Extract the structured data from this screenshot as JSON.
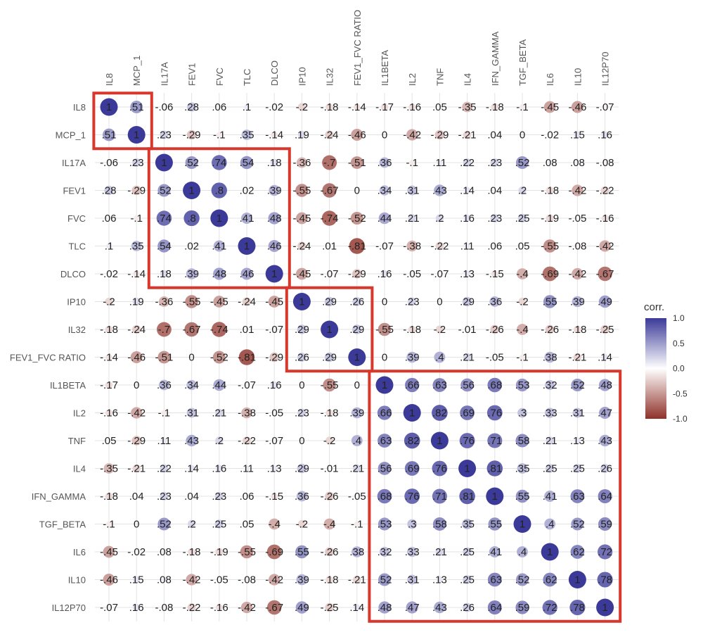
{
  "chart_data": {
    "type": "heatmap",
    "variables": [
      "IL8",
      "MCP_1",
      "IL17A",
      "FEV1",
      "FVC",
      "TLC",
      "DLCO",
      "IP10",
      "IL32",
      "FEV1_FVC RATIO",
      "IL1BETA",
      "IL2",
      "TNF",
      "IL4",
      "IFN_GAMMA",
      "TGF_BETA",
      "IL6",
      "IL10",
      "IL12P70"
    ],
    "matrix": [
      [
        "1",
        ".51",
        "-.06",
        ".28",
        ".06",
        ".1",
        "-.02",
        "-.2",
        "-.18",
        "-.14",
        "-.17",
        "-.16",
        ".05",
        "-.35",
        "-.18",
        "-.1",
        "-.45",
        "-.46",
        "-.07"
      ],
      [
        ".51",
        "1",
        ".23",
        "-.29",
        "-.1",
        ".35",
        "-.14",
        ".19",
        "-.24",
        "-.46",
        "0",
        "-.42",
        "-.29",
        "-.21",
        ".04",
        "0",
        "-.02",
        ".15",
        ".16"
      ],
      [
        "-.06",
        ".23",
        "1",
        ".52",
        ".74",
        ".54",
        ".18",
        "-.36",
        "-.7",
        "-.51",
        ".36",
        "-.1",
        ".11",
        ".22",
        ".23",
        ".52",
        ".08",
        ".08",
        "-.08"
      ],
      [
        ".28",
        "-.29",
        ".52",
        "1",
        ".8",
        ".02",
        ".39",
        "-.55",
        "-.67",
        "0",
        ".34",
        ".31",
        ".43",
        ".14",
        ".04",
        ".2",
        "-.18",
        "-.42",
        "-.22"
      ],
      [
        ".06",
        "-.1",
        ".74",
        ".8",
        "1",
        ".41",
        ".48",
        "-.45",
        "-.74",
        "-.52",
        ".44",
        ".21",
        ".2",
        ".16",
        ".23",
        ".25",
        "-.19",
        "-.05",
        "-.16"
      ],
      [
        ".1",
        ".35",
        ".54",
        ".02",
        ".41",
        "1",
        ".46",
        "-.24",
        ".01",
        "-.81",
        "-.07",
        "-.38",
        "-.22",
        ".11",
        ".06",
        ".05",
        "-.55",
        "-.08",
        "-.42"
      ],
      [
        "-.02",
        "-.14",
        ".18",
        ".39",
        ".48",
        ".46",
        "1",
        "-.45",
        "-.07",
        "-.29",
        ".16",
        "-.05",
        "-.07",
        ".13",
        "-.15",
        "-.4",
        "-.69",
        "-.42",
        "-.67"
      ],
      [
        "-.2",
        ".19",
        "-.36",
        "-.55",
        "-.45",
        "-.24",
        "-.45",
        "1",
        ".29",
        ".26",
        "0",
        ".23",
        "0",
        ".29",
        ".36",
        "-.2",
        ".55",
        ".39",
        ".49"
      ],
      [
        "-.18",
        "-.24",
        "-.7",
        "-.67",
        "-.74",
        ".01",
        "-.07",
        ".29",
        "1",
        ".29",
        "-.55",
        "-.18",
        "-.2",
        "-.01",
        "-.26",
        "-.4",
        "-.26",
        "-.18",
        "-.25"
      ],
      [
        "-.14",
        "-.46",
        "-.51",
        "0",
        "-.52",
        "-.81",
        "-.29",
        ".26",
        ".29",
        "1",
        "0",
        ".39",
        ".4",
        ".21",
        "-.05",
        "-.1",
        ".38",
        "-.21",
        ".14"
      ],
      [
        "-.17",
        "0",
        ".36",
        ".34",
        ".44",
        "-.07",
        ".16",
        "0",
        "-.55",
        "0",
        "1",
        ".66",
        ".63",
        ".56",
        ".68",
        ".53",
        ".32",
        ".52",
        ".48"
      ],
      [
        "-.16",
        "-.42",
        "-.1",
        ".31",
        ".21",
        "-.38",
        "-.05",
        ".23",
        "-.18",
        ".39",
        ".66",
        "1",
        ".82",
        ".69",
        ".76",
        ".3",
        ".33",
        ".31",
        ".47"
      ],
      [
        ".05",
        "-.29",
        ".11",
        ".43",
        ".2",
        "-.22",
        "-.07",
        "0",
        "-.2",
        ".4",
        ".63",
        ".82",
        "1",
        ".76",
        ".71",
        ".58",
        ".21",
        ".13",
        ".43"
      ],
      [
        "-.35",
        "-.21",
        ".22",
        ".14",
        ".16",
        ".11",
        ".13",
        ".29",
        "-.01",
        ".21",
        ".56",
        ".69",
        ".76",
        "1",
        ".81",
        ".35",
        ".25",
        ".25",
        ".26"
      ],
      [
        "-.18",
        ".04",
        ".23",
        ".04",
        ".23",
        ".06",
        "-.15",
        ".36",
        "-.26",
        "-.05",
        ".68",
        ".76",
        ".71",
        ".81",
        "1",
        ".55",
        ".41",
        ".63",
        ".64"
      ],
      [
        "-.1",
        "0",
        ".52",
        ".2",
        ".25",
        ".05",
        "-.4",
        "-.2",
        "-.4",
        "-.1",
        ".53",
        ".3",
        ".58",
        ".35",
        ".55",
        "1",
        ".4",
        ".52",
        ".59"
      ],
      [
        "-.45",
        "-.02",
        ".08",
        "-.18",
        "-.19",
        "-.55",
        "-.69",
        ".55",
        "-.26",
        ".38",
        ".32",
        ".33",
        ".21",
        ".25",
        ".41",
        ".4",
        "1",
        ".62",
        ".72"
      ],
      [
        "-.46",
        ".15",
        ".08",
        "-.42",
        "-.05",
        "-.08",
        "-.42",
        ".39",
        "-.18",
        "-.21",
        ".52",
        ".31",
        ".13",
        ".25",
        ".63",
        ".52",
        ".62",
        "1",
        ".78"
      ],
      [
        "-.07",
        ".16",
        "-.08",
        "-.22",
        "-.16",
        "-.42",
        "-.67",
        ".49",
        "-.25",
        ".14",
        ".48",
        ".47",
        ".43",
        ".26",
        ".64",
        ".59",
        ".72",
        ".78",
        "1"
      ]
    ],
    "highlight_blocks": [
      {
        "from": "IL8",
        "to": "MCP_1"
      },
      {
        "from": "IL17A",
        "to": "DLCO"
      },
      {
        "from": "IP10",
        "to": "FEV1_FVC RATIO"
      },
      {
        "from": "IL1BETA",
        "to": "IL12P70"
      }
    ],
    "legend": {
      "title": "corr.",
      "ticks": [
        "1.0",
        "0.5",
        "0.0",
        "-0.5",
        "-1.0"
      ],
      "range": [
        -1,
        1
      ],
      "placement": "right"
    },
    "grid": true,
    "colors": {
      "positive": "#3b3a98",
      "neutral": "#ffffff",
      "negative": "#8e3128",
      "highlight_box": "#d8372c",
      "gridline": "#e3e3e3"
    }
  }
}
